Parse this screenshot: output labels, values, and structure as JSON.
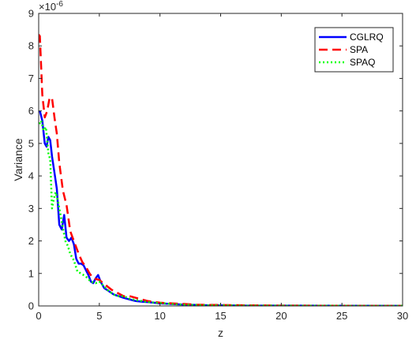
{
  "chart_data": {
    "type": "line",
    "title": "",
    "xlabel": "z",
    "ylabel": "Variance",
    "y_exponent_label": "×10",
    "y_exponent": "-6",
    "xlim": [
      0,
      30
    ],
    "ylim": [
      0,
      9
    ],
    "x_ticks": [
      0,
      5,
      10,
      15,
      20,
      25,
      30
    ],
    "y_ticks": [
      0,
      1,
      2,
      3,
      4,
      5,
      6,
      7,
      8,
      9
    ],
    "grid": false,
    "legend_position": "top-right",
    "series": [
      {
        "name": "CGLRQ",
        "color": "#0000ff",
        "style": "solid",
        "x": [
          0.1,
          0.3,
          0.5,
          0.65,
          0.8,
          0.95,
          1.1,
          1.3,
          1.5,
          1.7,
          1.9,
          2.1,
          2.3,
          2.5,
          2.7,
          2.9,
          3.1,
          3.3,
          3.5,
          3.7,
          3.9,
          4.1,
          4.3,
          4.5,
          4.7,
          4.9,
          5.1,
          5.4,
          5.8,
          6.2,
          6.6,
          7.0,
          7.5,
          8.0,
          8.5,
          9.0,
          9.5,
          10,
          11,
          12,
          13,
          14,
          15,
          17,
          20,
          25,
          30
        ],
        "y": [
          6.0,
          5.7,
          5.0,
          4.9,
          5.2,
          5.1,
          4.6,
          4.1,
          3.6,
          2.5,
          2.35,
          2.8,
          2.1,
          2.0,
          2.1,
          1.9,
          1.45,
          1.3,
          1.3,
          1.25,
          1.1,
          0.95,
          0.75,
          0.7,
          0.85,
          0.95,
          0.75,
          0.55,
          0.45,
          0.35,
          0.3,
          0.25,
          0.2,
          0.15,
          0.13,
          0.12,
          0.1,
          0.08,
          0.06,
          0.04,
          0.03,
          0.02,
          0.02,
          0.01,
          0.01,
          0.005,
          0.003
        ]
      },
      {
        "name": "SPA",
        "color": "#ff0000",
        "style": "dashed",
        "x": [
          0.0,
          0.1,
          0.3,
          0.5,
          0.7,
          0.9,
          1.1,
          1.3,
          1.5,
          1.7,
          2.0,
          2.3,
          2.6,
          3.0,
          3.3,
          3.6,
          3.9,
          4.2,
          4.5,
          5.0,
          5.5,
          6.0,
          6.5,
          7.0,
          7.5,
          8.0,
          8.5,
          9.0,
          10,
          11,
          12,
          13,
          14,
          15,
          17,
          20,
          25,
          30
        ],
        "y": [
          8.35,
          8.3,
          6.5,
          5.8,
          6.0,
          6.4,
          6.4,
          5.8,
          5.3,
          4.4,
          3.55,
          3.1,
          2.3,
          1.9,
          1.6,
          1.35,
          1.2,
          1.0,
          0.85,
          0.8,
          0.65,
          0.5,
          0.4,
          0.3,
          0.3,
          0.25,
          0.2,
          0.15,
          0.1,
          0.08,
          0.06,
          0.04,
          0.03,
          0.03,
          0.02,
          0.01,
          0.005,
          0.003
        ]
      },
      {
        "name": "SPAQ",
        "color": "#00ff00",
        "style": "dotted",
        "x": [
          0.05,
          0.2,
          0.4,
          0.6,
          0.8,
          0.95,
          1.1,
          1.25,
          1.4,
          1.6,
          1.8,
          2.0,
          2.2,
          2.4,
          2.6,
          2.9,
          3.2,
          3.5,
          3.9,
          4.3,
          4.7,
          5.0,
          5.4,
          5.8,
          6.2,
          6.6,
          7.0,
          7.5,
          8.0,
          8.5,
          9.0,
          10,
          11,
          12,
          13,
          14,
          15,
          17,
          20,
          25,
          30
        ],
        "y": [
          5.6,
          5.7,
          5.4,
          5.5,
          4.7,
          4.5,
          3.0,
          3.3,
          3.5,
          3.2,
          2.8,
          2.4,
          2.0,
          1.85,
          1.6,
          1.4,
          1.05,
          1.0,
          0.9,
          0.75,
          0.7,
          0.75,
          0.6,
          0.45,
          0.35,
          0.3,
          0.3,
          0.22,
          0.18,
          0.15,
          0.12,
          0.09,
          0.06,
          0.04,
          0.03,
          0.02,
          0.02,
          0.01,
          0.008,
          0.004,
          0.002
        ]
      }
    ]
  }
}
